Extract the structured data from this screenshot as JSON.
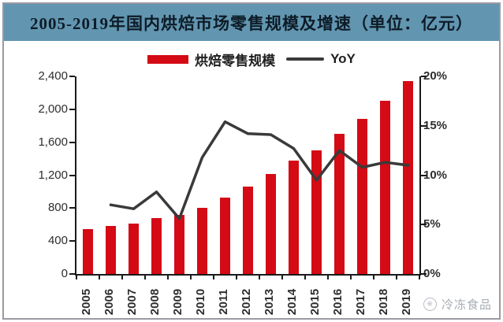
{
  "title": "2005-2019年国内烘焙市场零售规模及增速（单位：亿元）",
  "title_band_color": "#6295b0",
  "title_text_color": "#0d1c27",
  "legend": {
    "bar_label": "烘焙零售规模",
    "line_label": "YoY"
  },
  "watermark": {
    "text": "冷冻食品",
    "logo": "circle-logo-icon"
  },
  "chart_data": {
    "type": "bar",
    "subtype": "bar+line combo, dual axis",
    "title": "2005-2019年国内烘焙市场零售规模及增速（单位：亿元）",
    "categories": [
      "2005",
      "2006",
      "2007",
      "2008",
      "2009",
      "2010",
      "2011",
      "2012",
      "2013",
      "2014",
      "2015",
      "2016",
      "2017",
      "2018",
      "2019"
    ],
    "series": [
      {
        "name": "烘焙零售规模",
        "type": "bar",
        "axis": "left",
        "unit": "亿元",
        "color": "#d40a15",
        "values": [
          545,
          580,
          615,
          675,
          715,
          800,
          930,
          1060,
          1215,
          1380,
          1500,
          1700,
          1885,
          2105,
          2340
        ]
      },
      {
        "name": "YoY",
        "type": "line",
        "axis": "right",
        "unit": "%",
        "color": "#3a3a3a",
        "values": [
          null,
          7.0,
          6.6,
          8.3,
          5.6,
          11.8,
          15.4,
          14.2,
          14.1,
          12.7,
          9.5,
          12.5,
          10.8,
          11.3,
          11.0
        ]
      }
    ],
    "left_axis": {
      "min": 0,
      "max": 2400,
      "step": 400,
      "tick_labels": [
        "0",
        "400",
        "800",
        "1,200",
        "1,600",
        "2,000",
        "2,400"
      ]
    },
    "right_axis": {
      "min": 0,
      "max": 20,
      "step": 5,
      "tick_labels": [
        "0%",
        "5%",
        "10%",
        "15%",
        "20%"
      ]
    },
    "grid": "off",
    "legend_position": "top-center",
    "x_tick_rotation": -90
  }
}
